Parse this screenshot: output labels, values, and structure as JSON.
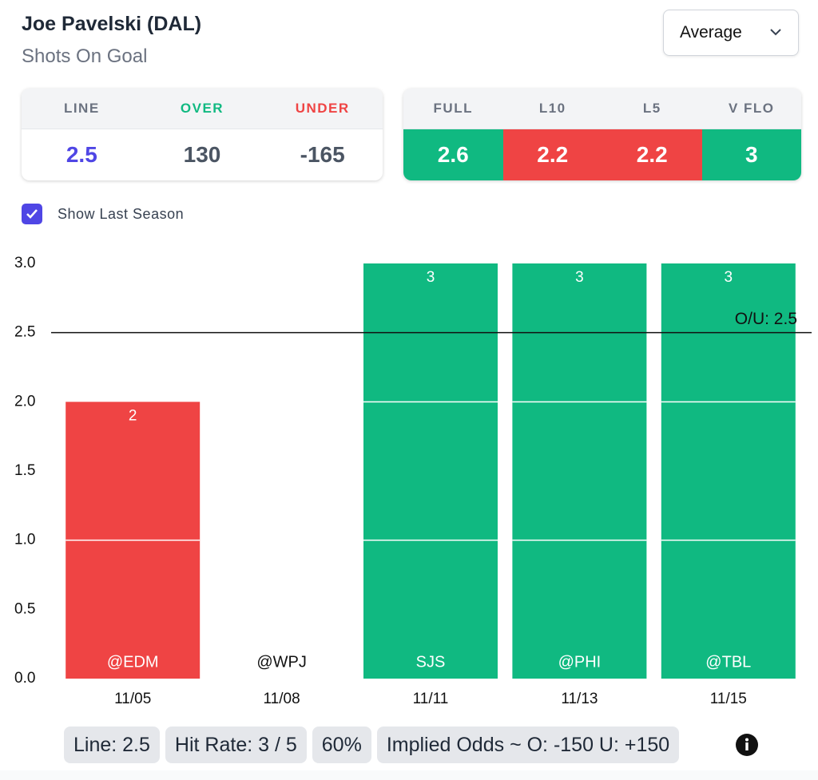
{
  "header": {
    "title": "Joe Pavelski (DAL)",
    "subtitle": "Shots On Goal",
    "dropdown": "Average"
  },
  "line_table": {
    "headers": [
      "LINE",
      "OVER",
      "UNDER"
    ],
    "values": [
      "2.5",
      "130",
      "-165"
    ]
  },
  "stats_table": {
    "headers": [
      "FULL",
      "L10",
      "L5",
      "V FLO"
    ],
    "values": [
      2.6,
      2.2,
      2.2,
      3
    ]
  },
  "checkbox": {
    "label": "Show Last Season",
    "checked": true
  },
  "chart_data": {
    "type": "bar",
    "categories": [
      "11/05",
      "11/08",
      "11/11",
      "11/13",
      "11/15"
    ],
    "opponents": [
      "@EDM",
      "@WPJ",
      "SJS",
      "@PHI",
      "@TBL"
    ],
    "values": [
      2,
      0,
      3,
      3,
      3
    ],
    "over_color": "#10b981",
    "under_color": "#ef4444",
    "ylim": [
      0,
      3
    ],
    "yticks": [
      {
        "value": 0,
        "label": "0.0"
      },
      0.5,
      {
        "value": 1,
        "label": "1.0"
      },
      1.5,
      {
        "value": 2,
        "label": "2.0"
      },
      2.5,
      {
        "value": 3,
        "label": "3.0"
      }
    ],
    "ou_line": {
      "value": 2.5,
      "label": "O/U: 2.5"
    }
  },
  "footer": {
    "pills": [
      "Line: 2.5",
      "Hit Rate: 3 / 5",
      "60%",
      "Implied Odds ~ O: -150 U: +150"
    ]
  }
}
